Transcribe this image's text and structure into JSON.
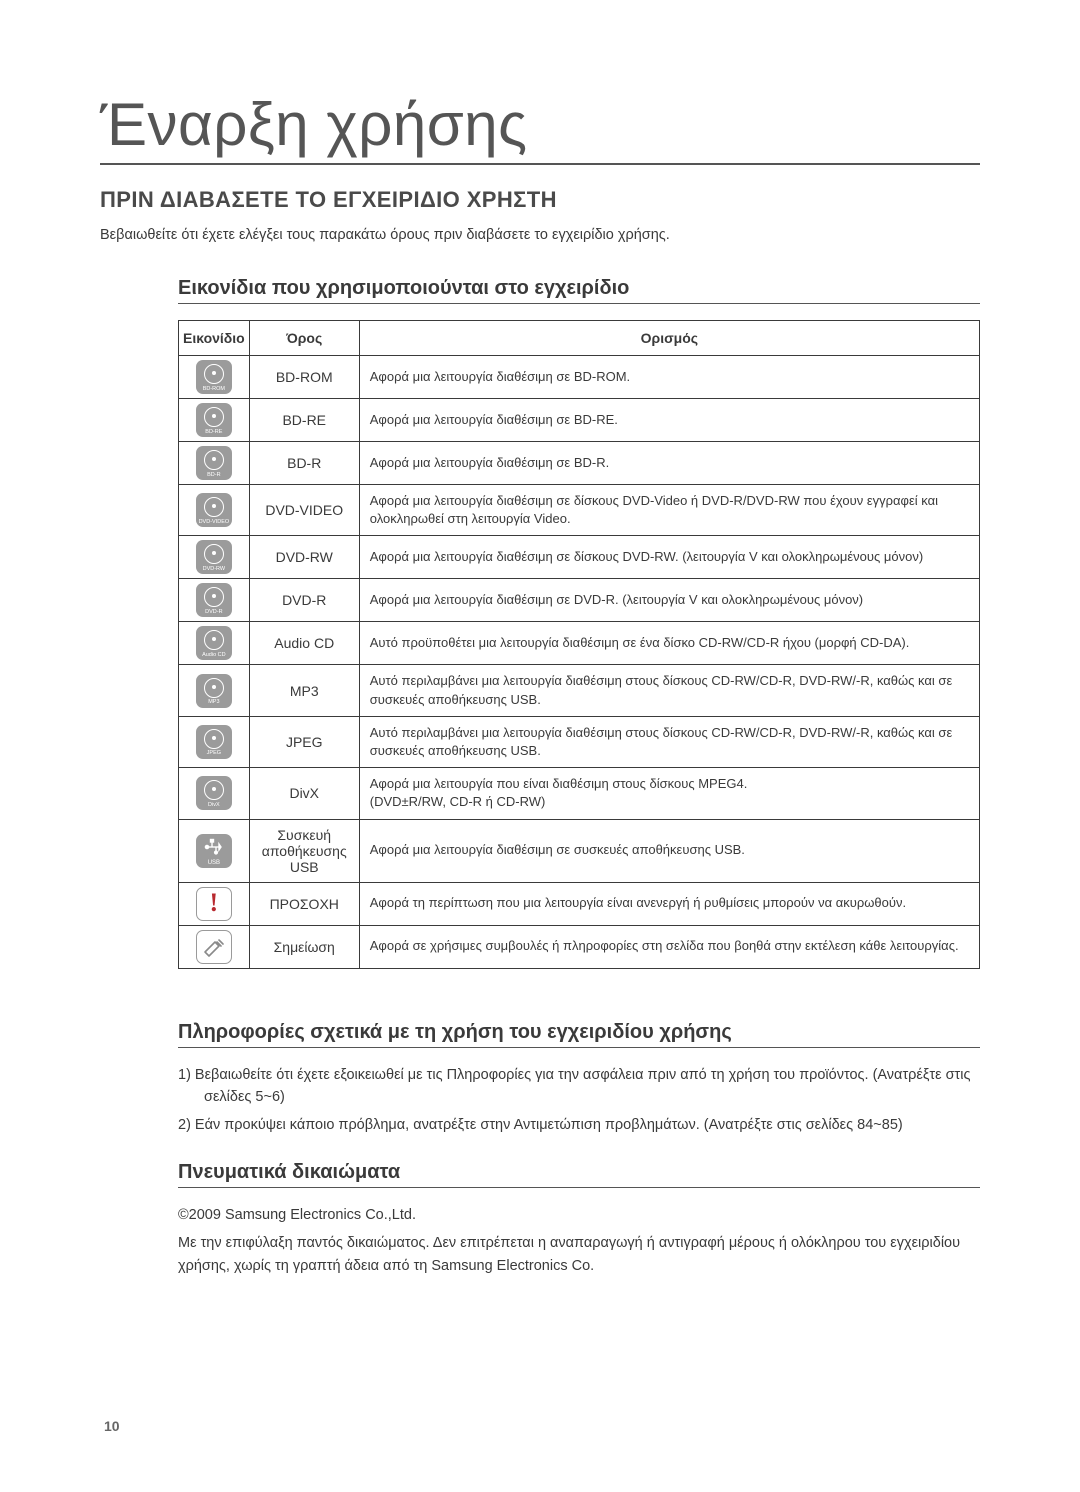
{
  "page": {
    "chapter_title": "Έναρξη χρήσης",
    "section_title": "ΠΡΙΝ ΔΙΑΒΑΣΕΤΕ ΤΟ ΕΓΧΕΙΡΙΔΙΟ ΧΡΗΣΤΗ",
    "intro": "Βεβαιωθείτε ότι έχετε ελέγξει τους παρακάτω όρους πριν διαβάσετε το εγχειρίδιο χρήσης.",
    "page_number": "10"
  },
  "icons_section": {
    "title": "Εικονίδια που χρησιμοποιούνται στο εγχειρίδιο",
    "headers": {
      "icon": "Εικονίδιο",
      "term": "Όρος",
      "def": "Ορισμός"
    },
    "rows": [
      {
        "type": "disc",
        "label": "BD-ROM",
        "term": "BD-ROM",
        "def": "Αφορά μια λειτουργία διαθέσιμη σε BD-ROM."
      },
      {
        "type": "disc",
        "label": "BD-RE",
        "term": "BD-RE",
        "def": "Αφορά μια λειτουργία διαθέσιμη σε BD-RE."
      },
      {
        "type": "disc",
        "label": "BD-R",
        "term": "BD-R",
        "def": "Αφορά μια λειτουργία διαθέσιμη σε BD-R."
      },
      {
        "type": "disc",
        "label": "DVD-VIDEO",
        "term": "DVD-VIDEO",
        "def": "Αφορά μια λειτουργία διαθέσιμη σε δίσκους DVD-Video ή DVD-R/DVD-RW που έχουν εγγραφεί και ολοκληρωθεί στη λειτουργία Video."
      },
      {
        "type": "disc",
        "label": "DVD-RW",
        "term": "DVD-RW",
        "def": "Αφορά μια λειτουργία διαθέσιμη σε δίσκους DVD-RW. (λειτουργία V και ολοκληρωμένους μόνον)"
      },
      {
        "type": "disc",
        "label": "DVD-R",
        "term": "DVD-R",
        "def": "Αφορά μια λειτουργία διαθέσιμη σε DVD-R. (λειτουργία V και ολοκληρωμένους μόνον)"
      },
      {
        "type": "disc",
        "label": "Audio CD",
        "term": "Audio CD",
        "def": "Αυτό προϋποθέτει μια λειτουργία διαθέσιμη σε ένα δίσκο CD-RW/CD-R ήχου (μορφή CD-DA)."
      },
      {
        "type": "disc",
        "label": "MP3",
        "term": "MP3",
        "def": "Αυτό περιλαμβάνει μια λειτουργία διαθέσιμη στους δίσκους CD-RW/CD-R, DVD-RW/-R, καθώς και σε συσκευές αποθήκευσης USB."
      },
      {
        "type": "disc",
        "label": "JPEG",
        "term": "JPEG",
        "def": "Αυτό περιλαμβάνει μια λειτουργία διαθέσιμη στους δίσκους CD-RW/CD-R, DVD-RW/-R, καθώς και σε συσκευές αποθήκευσης USB."
      },
      {
        "type": "disc",
        "label": "DivX",
        "term": "DivX",
        "def": "Αφορά μια λειτουργία που είναι διαθέσιμη στους δίσκους MPEG4.\n(DVD±R/RW, CD-R ή CD-RW)"
      },
      {
        "type": "usb",
        "label": "USB",
        "term": "Συσκευή αποθήκευσης USB",
        "def": "Αφορά μια λειτουργία διαθέσιμη σε συσκευές αποθήκευσης USB."
      },
      {
        "type": "warn",
        "label": "",
        "term": "ΠΡΟΣΟΧΗ",
        "def": "Αφορά τη περίπτωση που μια λειτουργία είναι ανενεργή ή ρυθμίσεις μπορούν να ακυρωθούν."
      },
      {
        "type": "note",
        "label": "",
        "term": "Σημείωση",
        "def": "Αφορά σε χρήσιμες συμβουλές ή πληροφορίες στη σελίδα που βοηθά στην εκτέλεση κάθε λειτουργίας."
      }
    ]
  },
  "usage_section": {
    "title": "Πληροφορίες σχετικά με τη χρήση του εγχειριδίου χρήσης",
    "item1": "1)  Βεβαιωθείτε ότι έχετε εξοικειωθεί με τις Πληροφορίες για την ασφάλεια πριν από τη χρήση του προϊόντος. (Ανατρέξτε στις σελίδες 5~6)",
    "item2": "2)  Εάν προκύψει κάποιο πρόβλημα, ανατρέξτε στην Αντιμετώπιση προβλημάτων. (Ανατρέξτε στις σελίδες 84~85)"
  },
  "copyright_section": {
    "title": "Πνευματικά δικαιώματα",
    "line1": "©2009 Samsung Electronics Co.,Ltd.",
    "line2": "Με την επιφύλαξη παντός δικαιώματος. Δεν επιτρέπεται η αναπαραγωγή ή αντιγραφή μέρους ή ολόκληρου του εγχειριδίου χρήσης, χωρίς τη γραπτή άδεια από τη Samsung Electronics Co."
  },
  "styling": {
    "page_bg": "#ffffff",
    "text_color": "#3a3a3a",
    "icon_bg": "#9b9b9b",
    "border_color": "#3a3a3a",
    "warn_color": "#b8292f",
    "chapter_font_size": 60,
    "section_font_size": 22,
    "sub_font_size": 20,
    "body_font_size": 14.5,
    "table_font_size": 13
  }
}
